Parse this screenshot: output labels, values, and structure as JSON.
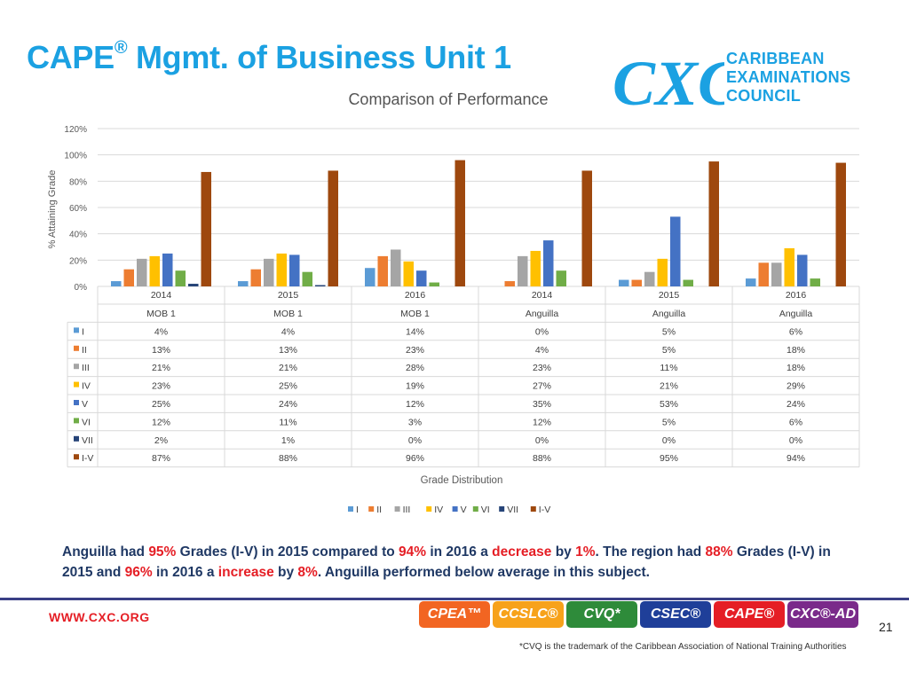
{
  "slide": {
    "title": "CAPE",
    "title_mark": "®",
    "title_rest": " Mgmt. of Business Unit 1",
    "page_number": "21"
  },
  "logo": {
    "line1": "CARIBBEAN",
    "line2": "EXAMINATIONS",
    "line3": "COUNCIL",
    "mark": "CXC"
  },
  "chart_data": {
    "type": "bar",
    "title": "Comparison of Performance",
    "ylabel": "% Attaining Grade",
    "xlabel": "Grade Distribution",
    "ylim": [
      0,
      120
    ],
    "yticks": [
      "0%",
      "20%",
      "40%",
      "60%",
      "80%",
      "100%",
      "120%"
    ],
    "categories": [
      {
        "year": "2014",
        "group": "MOB 1"
      },
      {
        "year": "2015",
        "group": "MOB 1"
      },
      {
        "year": "2016",
        "group": "MOB 1"
      },
      {
        "year": "2014",
        "group": "Anguilla"
      },
      {
        "year": "2015",
        "group": "Anguilla"
      },
      {
        "year": "2016",
        "group": "Anguilla"
      }
    ],
    "series": [
      {
        "name": "I",
        "color": "#5b9bd5",
        "values": [
          4,
          4,
          14,
          0,
          5,
          6
        ],
        "labels": [
          "4%",
          "4%",
          "14%",
          "0%",
          "5%",
          "6%"
        ]
      },
      {
        "name": "II",
        "color": "#ed7d31",
        "values": [
          13,
          13,
          23,
          4,
          5,
          18
        ],
        "labels": [
          "13%",
          "13%",
          "23%",
          "4%",
          "5%",
          "18%"
        ]
      },
      {
        "name": "III",
        "color": "#a5a5a5",
        "values": [
          21,
          21,
          28,
          23,
          11,
          18
        ],
        "labels": [
          "21%",
          "21%",
          "28%",
          "23%",
          "11%",
          "18%"
        ]
      },
      {
        "name": "IV",
        "color": "#ffc000",
        "values": [
          23,
          25,
          19,
          27,
          21,
          29
        ],
        "labels": [
          "23%",
          "25%",
          "19%",
          "27%",
          "21%",
          "29%"
        ]
      },
      {
        "name": "V",
        "color": "#4472c4",
        "values": [
          25,
          24,
          12,
          35,
          53,
          24
        ],
        "labels": [
          "25%",
          "24%",
          "12%",
          "35%",
          "53%",
          "24%"
        ]
      },
      {
        "name": "VI",
        "color": "#70ad47",
        "values": [
          12,
          11,
          3,
          12,
          5,
          6
        ],
        "labels": [
          "12%",
          "11%",
          "3%",
          "12%",
          "5%",
          "6%"
        ]
      },
      {
        "name": "VII",
        "color": "#264478",
        "values": [
          2,
          1,
          0,
          0,
          0,
          0
        ],
        "labels": [
          "2%",
          "1%",
          "0%",
          "0%",
          "0%",
          "0%"
        ]
      },
      {
        "name": "I-V",
        "color": "#9e480e",
        "values": [
          87,
          88,
          96,
          88,
          95,
          94
        ],
        "labels": [
          "87%",
          "88%",
          "96%",
          "88%",
          "95%",
          "94%"
        ]
      }
    ]
  },
  "summary": {
    "t1": "Anguilla had ",
    "v1": "95%",
    "t2": " Grades (I-V) in 2015 compared to ",
    "v2": "94%",
    "t3": " in 2016 a ",
    "v3": "decrease",
    "t4": " by ",
    "v4": "1%",
    "t5": ". The region had ",
    "v5": "88%",
    "t6": " Grades (I-V) in 2015 and ",
    "v6": "96%",
    "t7": " in 2016 a ",
    "v7": "increase",
    "t8": " by ",
    "v8": "8%",
    "t9": ". Anguilla performed below average in this subject."
  },
  "footer": {
    "website": "WWW.CXC.ORG",
    "badges": [
      {
        "label": "CPEA™",
        "color": "#f26522"
      },
      {
        "label": "CCSLC®",
        "color": "#f7a21b"
      },
      {
        "label": "CVQ*",
        "color": "#2e8b3a"
      },
      {
        "label": "CSEC®",
        "color": "#1f3f99"
      },
      {
        "label": "CAPE®",
        "color": "#e51e25"
      },
      {
        "label": "CXC®-AD",
        "color": "#7a2a8a"
      }
    ],
    "footnote": "*CVQ is the trademark of the Caribbean Association of National Training Authorities"
  }
}
